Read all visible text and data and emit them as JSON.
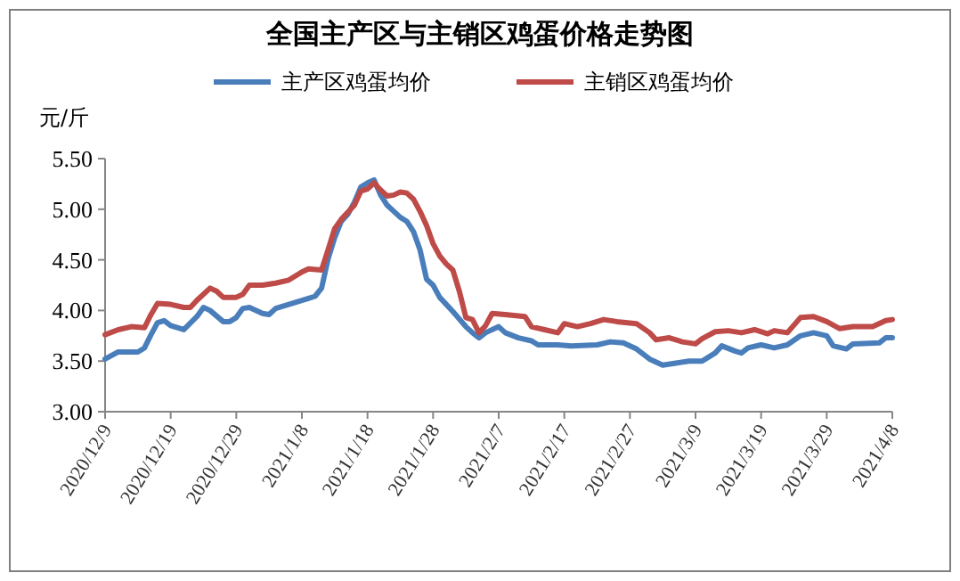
{
  "chart_data": {
    "type": "line",
    "title": "全国主产区与主销区鸡蛋价格走势图",
    "ylabel": "元/斤",
    "legend": "top",
    "grid": false,
    "marker": "none",
    "line_style": "solid",
    "xlim": [
      "2020-12-09",
      "2021-04-08"
    ],
    "xticks": [
      {
        "value": "2020-12-09",
        "label": "2020/12/9"
      },
      {
        "value": "2020-12-19",
        "label": "2020/12/19"
      },
      {
        "value": "2020-12-29",
        "label": "2020/12/29"
      },
      {
        "value": "2021-01-08",
        "label": "2021/1/8"
      },
      {
        "value": "2021-01-18",
        "label": "2021/1/18"
      },
      {
        "value": "2021-01-28",
        "label": "2021/1/28"
      },
      {
        "value": "2021-02-07",
        "label": "2021/2/7"
      },
      {
        "value": "2021-02-17",
        "label": "2021/2/17"
      },
      {
        "value": "2021-02-27",
        "label": "2021/2/27"
      },
      {
        "value": "2021-03-09",
        "label": "2021/3/9"
      },
      {
        "value": "2021-03-19",
        "label": "2021/3/19"
      },
      {
        "value": "2021-03-29",
        "label": "2021/3/29"
      },
      {
        "value": "2021-04-08",
        "label": "2021/4/8"
      }
    ],
    "ylim": [
      3,
      5.5
    ],
    "yticks": [
      {
        "value": 3,
        "label": "3.00"
      },
      {
        "value": 3.5,
        "label": "3.50"
      },
      {
        "value": 4,
        "label": "4.00"
      },
      {
        "value": 4.5,
        "label": "4.50"
      },
      {
        "value": 5,
        "label": "5.00"
      },
      {
        "value": 5.5,
        "label": "5.50"
      }
    ],
    "series": [
      {
        "name": "主产区鸡蛋均价",
        "color": "#4a7ebb",
        "x": [
          "2020-12-09",
          "2020-12-11",
          "2020-12-14",
          "2020-12-15",
          "2020-12-16",
          "2020-12-17",
          "2020-12-18",
          "2020-12-19",
          "2020-12-21",
          "2020-12-23",
          "2020-12-24",
          "2020-12-25",
          "2020-12-27",
          "2020-12-28",
          "2020-12-29",
          "2020-12-30",
          "2020-12-31",
          "2021-01-02",
          "2021-01-03",
          "2021-01-04",
          "2021-01-06",
          "2021-01-08",
          "2021-01-09",
          "2021-01-10",
          "2021-01-11",
          "2021-01-12",
          "2021-01-13",
          "2021-01-14",
          "2021-01-15",
          "2021-01-16",
          "2021-01-17",
          "2021-01-18",
          "2021-01-19",
          "2021-01-20",
          "2021-01-21",
          "2021-01-22",
          "2021-01-23",
          "2021-01-24",
          "2021-01-25",
          "2021-01-26",
          "2021-01-27",
          "2021-01-28",
          "2021-01-29",
          "2021-01-31",
          "2021-02-02",
          "2021-02-03",
          "2021-02-04",
          "2021-02-05",
          "2021-02-07",
          "2021-02-08",
          "2021-02-10",
          "2021-02-12",
          "2021-02-13",
          "2021-02-16",
          "2021-02-18",
          "2021-02-22",
          "2021-02-24",
          "2021-02-26",
          "2021-02-28",
          "2021-03-02",
          "2021-03-04",
          "2021-03-06",
          "2021-03-08",
          "2021-03-10",
          "2021-03-12",
          "2021-03-13",
          "2021-03-15",
          "2021-03-16",
          "2021-03-17",
          "2021-03-19",
          "2021-03-21",
          "2021-03-23",
          "2021-03-25",
          "2021-03-27",
          "2021-03-29",
          "2021-03-30",
          "2021-04-01",
          "2021-04-02",
          "2021-04-06",
          "2021-04-07",
          "2021-04-08"
        ],
        "values": [
          3.52,
          3.59,
          3.59,
          3.63,
          3.76,
          3.88,
          3.9,
          3.85,
          3.81,
          3.94,
          4.03,
          4.0,
          3.89,
          3.89,
          3.93,
          4.02,
          4.03,
          3.97,
          3.96,
          4.02,
          4.06,
          4.1,
          4.12,
          4.14,
          4.22,
          4.51,
          4.72,
          4.88,
          4.95,
          5.07,
          5.22,
          5.26,
          5.29,
          5.14,
          5.04,
          4.98,
          4.92,
          4.88,
          4.78,
          4.6,
          4.31,
          4.25,
          4.13,
          3.99,
          3.84,
          3.78,
          3.73,
          3.78,
          3.84,
          3.78,
          3.73,
          3.7,
          3.66,
          3.66,
          3.65,
          3.66,
          3.69,
          3.68,
          3.62,
          3.52,
          3.46,
          3.48,
          3.5,
          3.5,
          3.58,
          3.65,
          3.6,
          3.58,
          3.63,
          3.66,
          3.63,
          3.66,
          3.75,
          3.78,
          3.75,
          3.65,
          3.62,
          3.67,
          3.68,
          3.73,
          3.73
        ]
      },
      {
        "name": "主销区鸡蛋均价",
        "color": "#be4b48",
        "x": [
          "2020-12-09",
          "2020-12-11",
          "2020-12-13",
          "2020-12-15",
          "2020-12-16",
          "2020-12-17",
          "2020-12-19",
          "2020-12-21",
          "2020-12-22",
          "2020-12-23",
          "2020-12-25",
          "2020-12-26",
          "2020-12-27",
          "2020-12-29",
          "2020-12-30",
          "2020-12-31",
          "2021-01-02",
          "2021-01-04",
          "2021-01-06",
          "2021-01-08",
          "2021-01-09",
          "2021-01-11",
          "2021-01-12",
          "2021-01-13",
          "2021-01-14",
          "2021-01-16",
          "2021-01-17",
          "2021-01-18",
          "2021-01-19",
          "2021-01-20",
          "2021-01-21",
          "2021-01-22",
          "2021-01-23",
          "2021-01-24",
          "2021-01-25",
          "2021-01-26",
          "2021-01-27",
          "2021-01-28",
          "2021-01-29",
          "2021-01-30",
          "2021-01-31",
          "2021-02-01",
          "2021-02-02",
          "2021-02-03",
          "2021-02-04",
          "2021-02-05",
          "2021-02-06",
          "2021-02-08",
          "2021-02-11",
          "2021-02-12",
          "2021-02-14",
          "2021-02-16",
          "2021-02-17",
          "2021-02-19",
          "2021-02-21",
          "2021-02-23",
          "2021-02-25",
          "2021-02-28",
          "2021-03-02",
          "2021-03-03",
          "2021-03-05",
          "2021-03-07",
          "2021-03-09",
          "2021-03-10",
          "2021-03-12",
          "2021-03-14",
          "2021-03-16",
          "2021-03-18",
          "2021-03-20",
          "2021-03-21",
          "2021-03-23",
          "2021-03-25",
          "2021-03-27",
          "2021-03-29",
          "2021-03-31",
          "2021-04-02",
          "2021-04-05",
          "2021-04-07",
          "2021-04-08"
        ],
        "values": [
          3.76,
          3.81,
          3.84,
          3.83,
          3.96,
          4.07,
          4.06,
          4.03,
          4.03,
          4.1,
          4.22,
          4.19,
          4.13,
          4.13,
          4.16,
          4.25,
          4.25,
          4.27,
          4.3,
          4.38,
          4.41,
          4.4,
          4.6,
          4.81,
          4.9,
          5.04,
          5.18,
          5.2,
          5.26,
          5.19,
          5.13,
          5.14,
          5.17,
          5.16,
          5.1,
          4.98,
          4.84,
          4.66,
          4.54,
          4.46,
          4.4,
          4.19,
          3.93,
          3.91,
          3.78,
          3.85,
          3.97,
          3.96,
          3.94,
          3.84,
          3.81,
          3.78,
          3.87,
          3.84,
          3.87,
          3.91,
          3.89,
          3.87,
          3.78,
          3.71,
          3.73,
          3.69,
          3.67,
          3.72,
          3.79,
          3.8,
          3.78,
          3.81,
          3.77,
          3.8,
          3.78,
          3.93,
          3.94,
          3.89,
          3.82,
          3.84,
          3.84,
          3.9,
          3.91
        ]
      }
    ]
  }
}
